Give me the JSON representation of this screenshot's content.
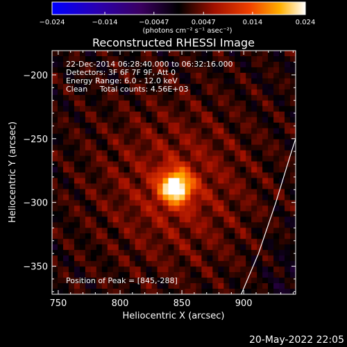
{
  "chart_data": {
    "type": "heatmap",
    "title": "Reconstructed RHESSI Image",
    "xlabel": "Heliocentric X (arcsec)",
    "ylabel": "Heliocentric Y (arcsec)",
    "xlim": [
      745,
      942
    ],
    "ylim": [
      -372,
      -181
    ],
    "xticks": [
      750,
      800,
      850,
      900
    ],
    "yticks": [
      -200,
      -250,
      -300,
      -350
    ],
    "colormap": "thermal (blue-purple-black-red-orange-yellow-white)",
    "colorbar": {
      "range": [
        -0.024,
        0.024
      ],
      "ticks": [
        "-0.024",
        "-0.014",
        "-0.0047",
        "0.0047",
        "0.014",
        "0.024"
      ],
      "units": "(photons cm⁻² s⁻¹ asec⁻²)"
    },
    "annotations": {
      "time_range": "22-Dec-2014 06:28:40.000 to 06:32:16.000",
      "detectors": "Detectors: 3F 6F 7F 9F, Att 0",
      "energy_range": "Energy Range: 6.0 - 12.0 keV",
      "algorithm_counts": "Clean     Total counts: 4.56E+03",
      "peak_position": "Position of Peak = [845,-288]"
    },
    "peak": {
      "x": 845,
      "y": -288
    },
    "limb_line": true
  },
  "footer": {
    "timestamp": "20-May-2022 22:05"
  }
}
